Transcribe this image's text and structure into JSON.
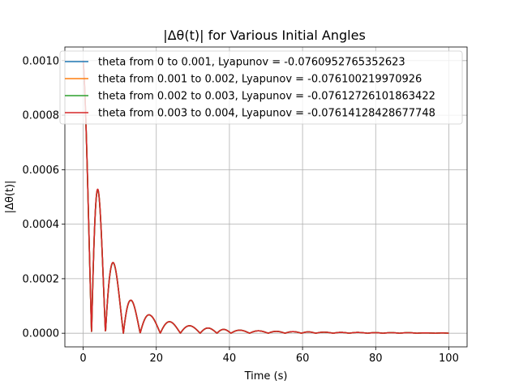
{
  "chart_data": {
    "type": "line",
    "title": "|Δθ(t)| for Various Initial Angles",
    "xlabel": "Time (s)",
    "ylabel": "|Δθ(t)|",
    "xlim": [
      -5,
      105
    ],
    "ylim": [
      -5e-05,
      0.00105
    ],
    "xticks": [
      0,
      20,
      40,
      60,
      80,
      100
    ],
    "xtick_labels": [
      "0",
      "20",
      "40",
      "60",
      "80",
      "100"
    ],
    "yticks": [
      0,
      0.0002,
      0.0004,
      0.0006,
      0.0008,
      0.001
    ],
    "ytick_labels": [
      "0.0000",
      "0.0002",
      "0.0004",
      "0.0006",
      "0.0008",
      "0.0010"
    ],
    "grid": true,
    "legend_position": "top-right",
    "envelope": {
      "x": [
        0,
        4.3,
        8.1,
        12.9,
        18.5,
        23.8,
        28.9,
        34.3,
        38.5,
        43.3,
        47.6,
        52.5,
        56.5,
        61.4,
        65.5,
        70.7,
        74.8,
        79.6,
        84.5,
        89.7,
        94.5,
        100
      ],
      "y": [
        0.001,
        0.00051,
        0.00027,
        0.000125,
        6.5e-05,
        4.2e-05,
        2.8e-05,
        1.9e-05,
        1.4e-05,
        1.1e-05,
        9e-06,
        7e-06,
        6e-06,
        5e-06,
        4e-06,
        3e-06,
        3e-06,
        2e-06,
        2e-06,
        2e-06,
        1e-06,
        1e-06
      ]
    },
    "zeros": [
      0,
      2.3,
      6.1,
      11.0,
      15.6,
      21.1,
      26.6,
      32.0,
      36.6,
      40.4,
      45.5,
      50.6,
      55.2,
      59.7,
      63.6,
      68.4,
      72.7,
      77.8,
      82.0,
      86.5,
      91.3,
      96.4,
      100
    ],
    "series": [
      {
        "name": "theta from 0 to 0.001, Lyapunov = -0.0760952765352623",
        "color": "#1f77b4",
        "scale": 0.995
      },
      {
        "name": "theta from 0.001 to 0.002, Lyapunov = -0.076100219970926",
        "color": "#ff7f0e",
        "scale": 0.998
      },
      {
        "name": "theta from 0.002 to 0.003, Lyapunov = -0.07612726101863422",
        "color": "#2ca02c",
        "scale": 1.0
      },
      {
        "name": "theta from 0.003 to 0.004, Lyapunov = -0.07614128428677748",
        "color": "#d62728",
        "scale": 1.002
      }
    ]
  }
}
